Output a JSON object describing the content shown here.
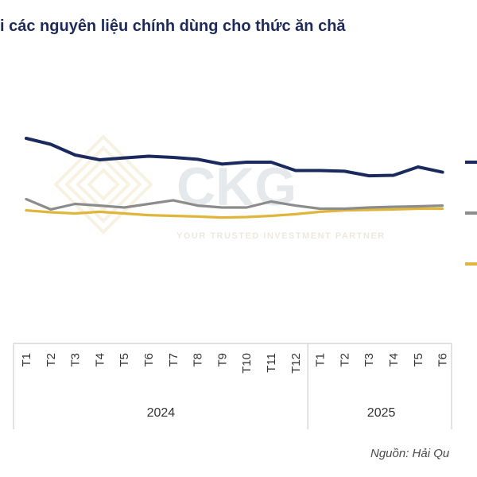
{
  "chart_data": {
    "type": "line",
    "title": "i các nguyên liệu chính dùng cho thức ăn chă",
    "source": "Nguồn: Hải Qu",
    "watermark": {
      "brand": "CKG",
      "tagline": "YOUR TRUSTED INVESTMENT PARTNER"
    },
    "categories": [
      "T1",
      "T2",
      "T3",
      "T4",
      "T5",
      "T6",
      "T7",
      "T8",
      "T9",
      "T10",
      "T11",
      "T12",
      "T1",
      "T2",
      "T3",
      "T4",
      "T5",
      "T6"
    ],
    "groups": [
      {
        "label": "2024",
        "start": 0,
        "end": 11
      },
      {
        "label": "2025",
        "start": 12,
        "end": 17
      }
    ],
    "ylim": [
      0,
      10
    ],
    "grid": false,
    "legend_position": "right (cut off)",
    "series": [
      {
        "color": "#1b2a5e",
        "values": [
          8.2,
          7.95,
          7.5,
          7.3,
          7.38,
          7.45,
          7.4,
          7.32,
          7.12,
          7.2,
          7.2,
          6.85,
          6.85,
          6.82,
          6.63,
          6.65,
          7.0,
          6.78
        ]
      },
      {
        "color": "#8c8c8c",
        "values": [
          5.65,
          5.22,
          5.45,
          5.38,
          5.3,
          5.45,
          5.6,
          5.38,
          5.3,
          5.3,
          5.55,
          5.38,
          5.25,
          5.25,
          5.3,
          5.33,
          5.35,
          5.38
        ]
      },
      {
        "color": "#e0b53c",
        "values": [
          5.18,
          5.1,
          5.05,
          5.12,
          5.05,
          4.98,
          4.95,
          4.92,
          4.88,
          4.9,
          4.95,
          5.02,
          5.12,
          5.18,
          5.2,
          5.22,
          5.25,
          5.25
        ]
      }
    ]
  }
}
